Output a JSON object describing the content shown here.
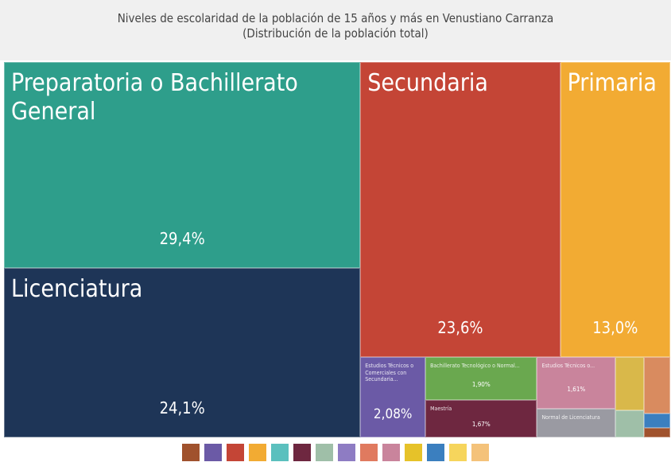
{
  "chart_data": {
    "type": "treemap",
    "title": "Niveles de escolaridad de la población de 15 años y más en Venustiano Carranza",
    "subtitle": "(Distribución de la población total)",
    "categories": [
      "Preparatoria o Bachillerato General",
      "Licenciatura",
      "Secundaria",
      "Primaria",
      "Estudios Técnicos o Comerciales con Secundaria...",
      "Bachillerato Tecnológico o Normal...",
      "Estudios Técnicos o...",
      "Maestría",
      "Normal de Licenciatura",
      null,
      null,
      null,
      null,
      null
    ],
    "values": [
      29.4,
      24.1,
      23.6,
      13.0,
      2.08,
      1.9,
      1.61,
      1.67,
      0.9,
      0.6,
      0.6,
      0.3,
      0.15,
      0.1
    ],
    "value_labels": [
      "29,4%",
      "24,1%",
      "23,6%",
      "13,0%",
      "2,08%",
      "1,90%",
      "1,61%",
      "1,67%",
      null,
      null,
      null,
      null,
      null,
      null
    ],
    "colors": [
      "#2e9e8b",
      "#1e3557",
      "#c44536",
      "#f2ab33",
      "#6b5aa6",
      "#6aa84f",
      "#c9849c",
      "#6e2740",
      "#9a9aa2",
      "#d9b84a",
      "#d98b5f",
      "#9fbfa8",
      "#3b7fbf",
      "#a0522d"
    ]
  }
}
